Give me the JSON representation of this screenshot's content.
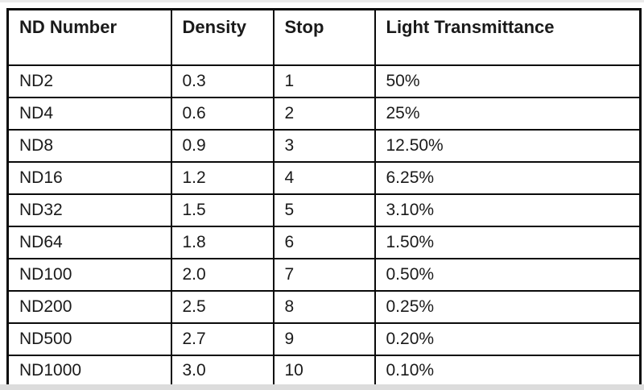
{
  "page": {
    "background_color": "#ffffff",
    "border_color": "#0a0a0a",
    "text_color": "#1a1a1a"
  },
  "table": {
    "columns": [
      "ND Number",
      "Density",
      "Stop",
      "Light Transmittance"
    ],
    "rows": [
      [
        "ND2",
        "0.3",
        "1",
        "50%"
      ],
      [
        "ND4",
        "0.6",
        "2",
        "25%"
      ],
      [
        "ND8",
        "0.9",
        "3",
        "12.50%"
      ],
      [
        "ND16",
        "1.2",
        "4",
        "6.25%"
      ],
      [
        "ND32",
        "1.5",
        "5",
        "3.10%"
      ],
      [
        "ND64",
        "1.8",
        "6",
        "1.50%"
      ],
      [
        "ND100",
        "2.0",
        "7",
        "0.50%"
      ],
      [
        "ND200",
        "2.5",
        "8",
        "0.25%"
      ],
      [
        "ND500",
        "2.7",
        "9",
        "0.20%"
      ],
      [
        "ND1000",
        "3.0",
        "10",
        "0.10%"
      ]
    ]
  }
}
